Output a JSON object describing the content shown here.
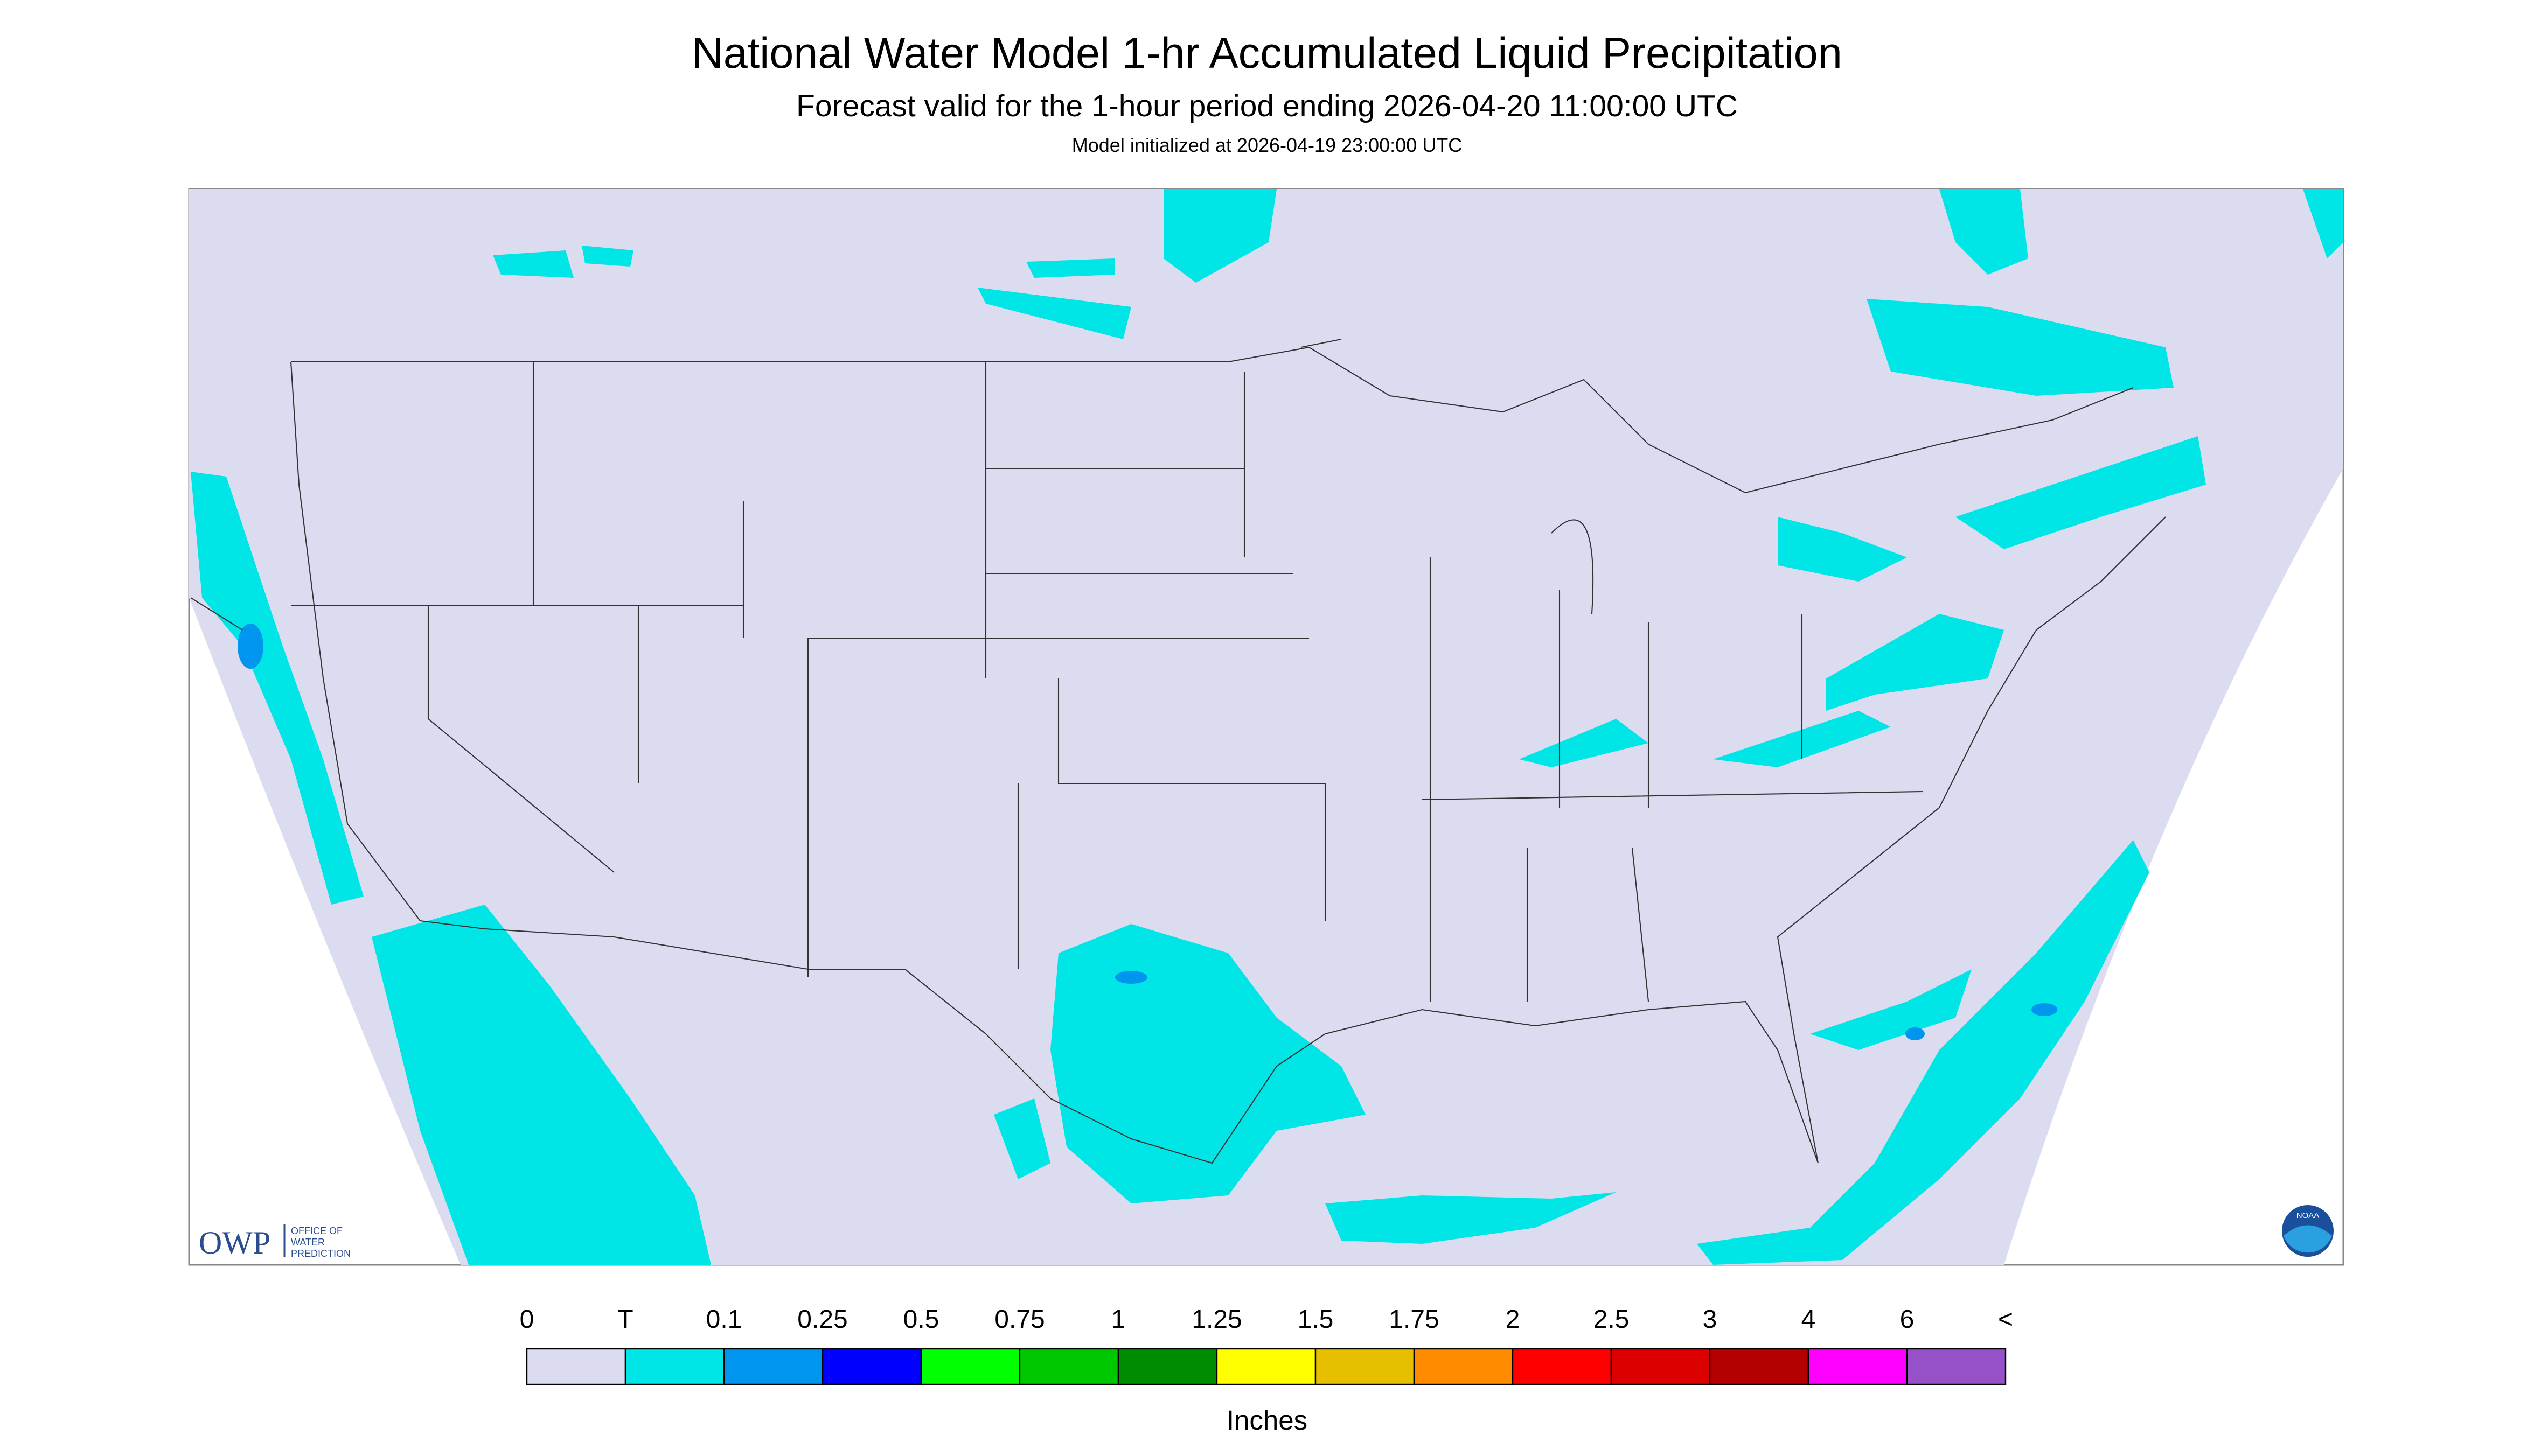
{
  "header": {
    "title": "National Water Model 1-hr Accumulated Liquid Precipitation",
    "subtitle": "Forecast valid for the 1-hour period ending 2026-04-20 11:00:00 UTC",
    "init": "Model initialized at 2026-04-19 23:00:00 UTC"
  },
  "logos": {
    "owp": "OWP",
    "owp_sub": [
      "OFFICE OF",
      "WATER",
      "PREDICTION"
    ],
    "noaa": "NOAA"
  },
  "legend": {
    "labels": [
      "0",
      "T",
      "0.1",
      "0.25",
      "0.5",
      "0.75",
      "1",
      "1.25",
      "1.5",
      "1.75",
      "2",
      "2.5",
      "3",
      "4",
      "6",
      "<"
    ],
    "colors": [
      "#dcdcf0",
      "#00e6e6",
      "#0096f0",
      "#0000ff",
      "#00ff00",
      "#00c800",
      "#008c00",
      "#ffff00",
      "#e6c000",
      "#ff8c00",
      "#ff0000",
      "#dc0000",
      "#b40000",
      "#ff00ff",
      "#9650c8"
    ],
    "unit": "Inches"
  }
}
